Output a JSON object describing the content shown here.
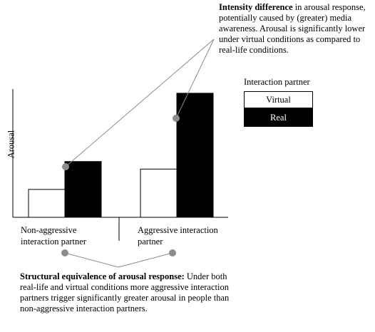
{
  "chart_data": {
    "type": "bar",
    "ylabel": "Arousal",
    "categories": [
      "Non-aggressive interaction partner",
      "Aggressive interaction partner"
    ],
    "series": [
      {
        "name": "Virtual",
        "values": [
          1.0,
          1.73
        ],
        "color": "#ffffff"
      },
      {
        "name": "Real",
        "values": [
          2.0,
          4.45
        ],
        "color": "#000000"
      }
    ],
    "ylim": [
      0,
      4.6
    ],
    "grid": false,
    "legend_title": "Interaction partner",
    "legend_placement": "right"
  },
  "annotations": {
    "top_bold": "Intensity difference",
    "top_text": " in arousal response, potentially caused by (greater) media awareness. Arousal is significantly lower under virtual conditions as compared to real-life conditions.",
    "bottom_bold": "Structural equivalence of arousal response:",
    "bottom_text": " Under both real-life and virtual conditions more aggressive interaction partners trigger significantly greater arousal in people than non-aggressive interaction partners."
  },
  "category_labels": [
    "Non-aggressive interaction partner",
    "Aggressive interaction partner"
  ],
  "colors": {
    "marker": "#8c8c8c",
    "line": "#8c8c8c"
  }
}
